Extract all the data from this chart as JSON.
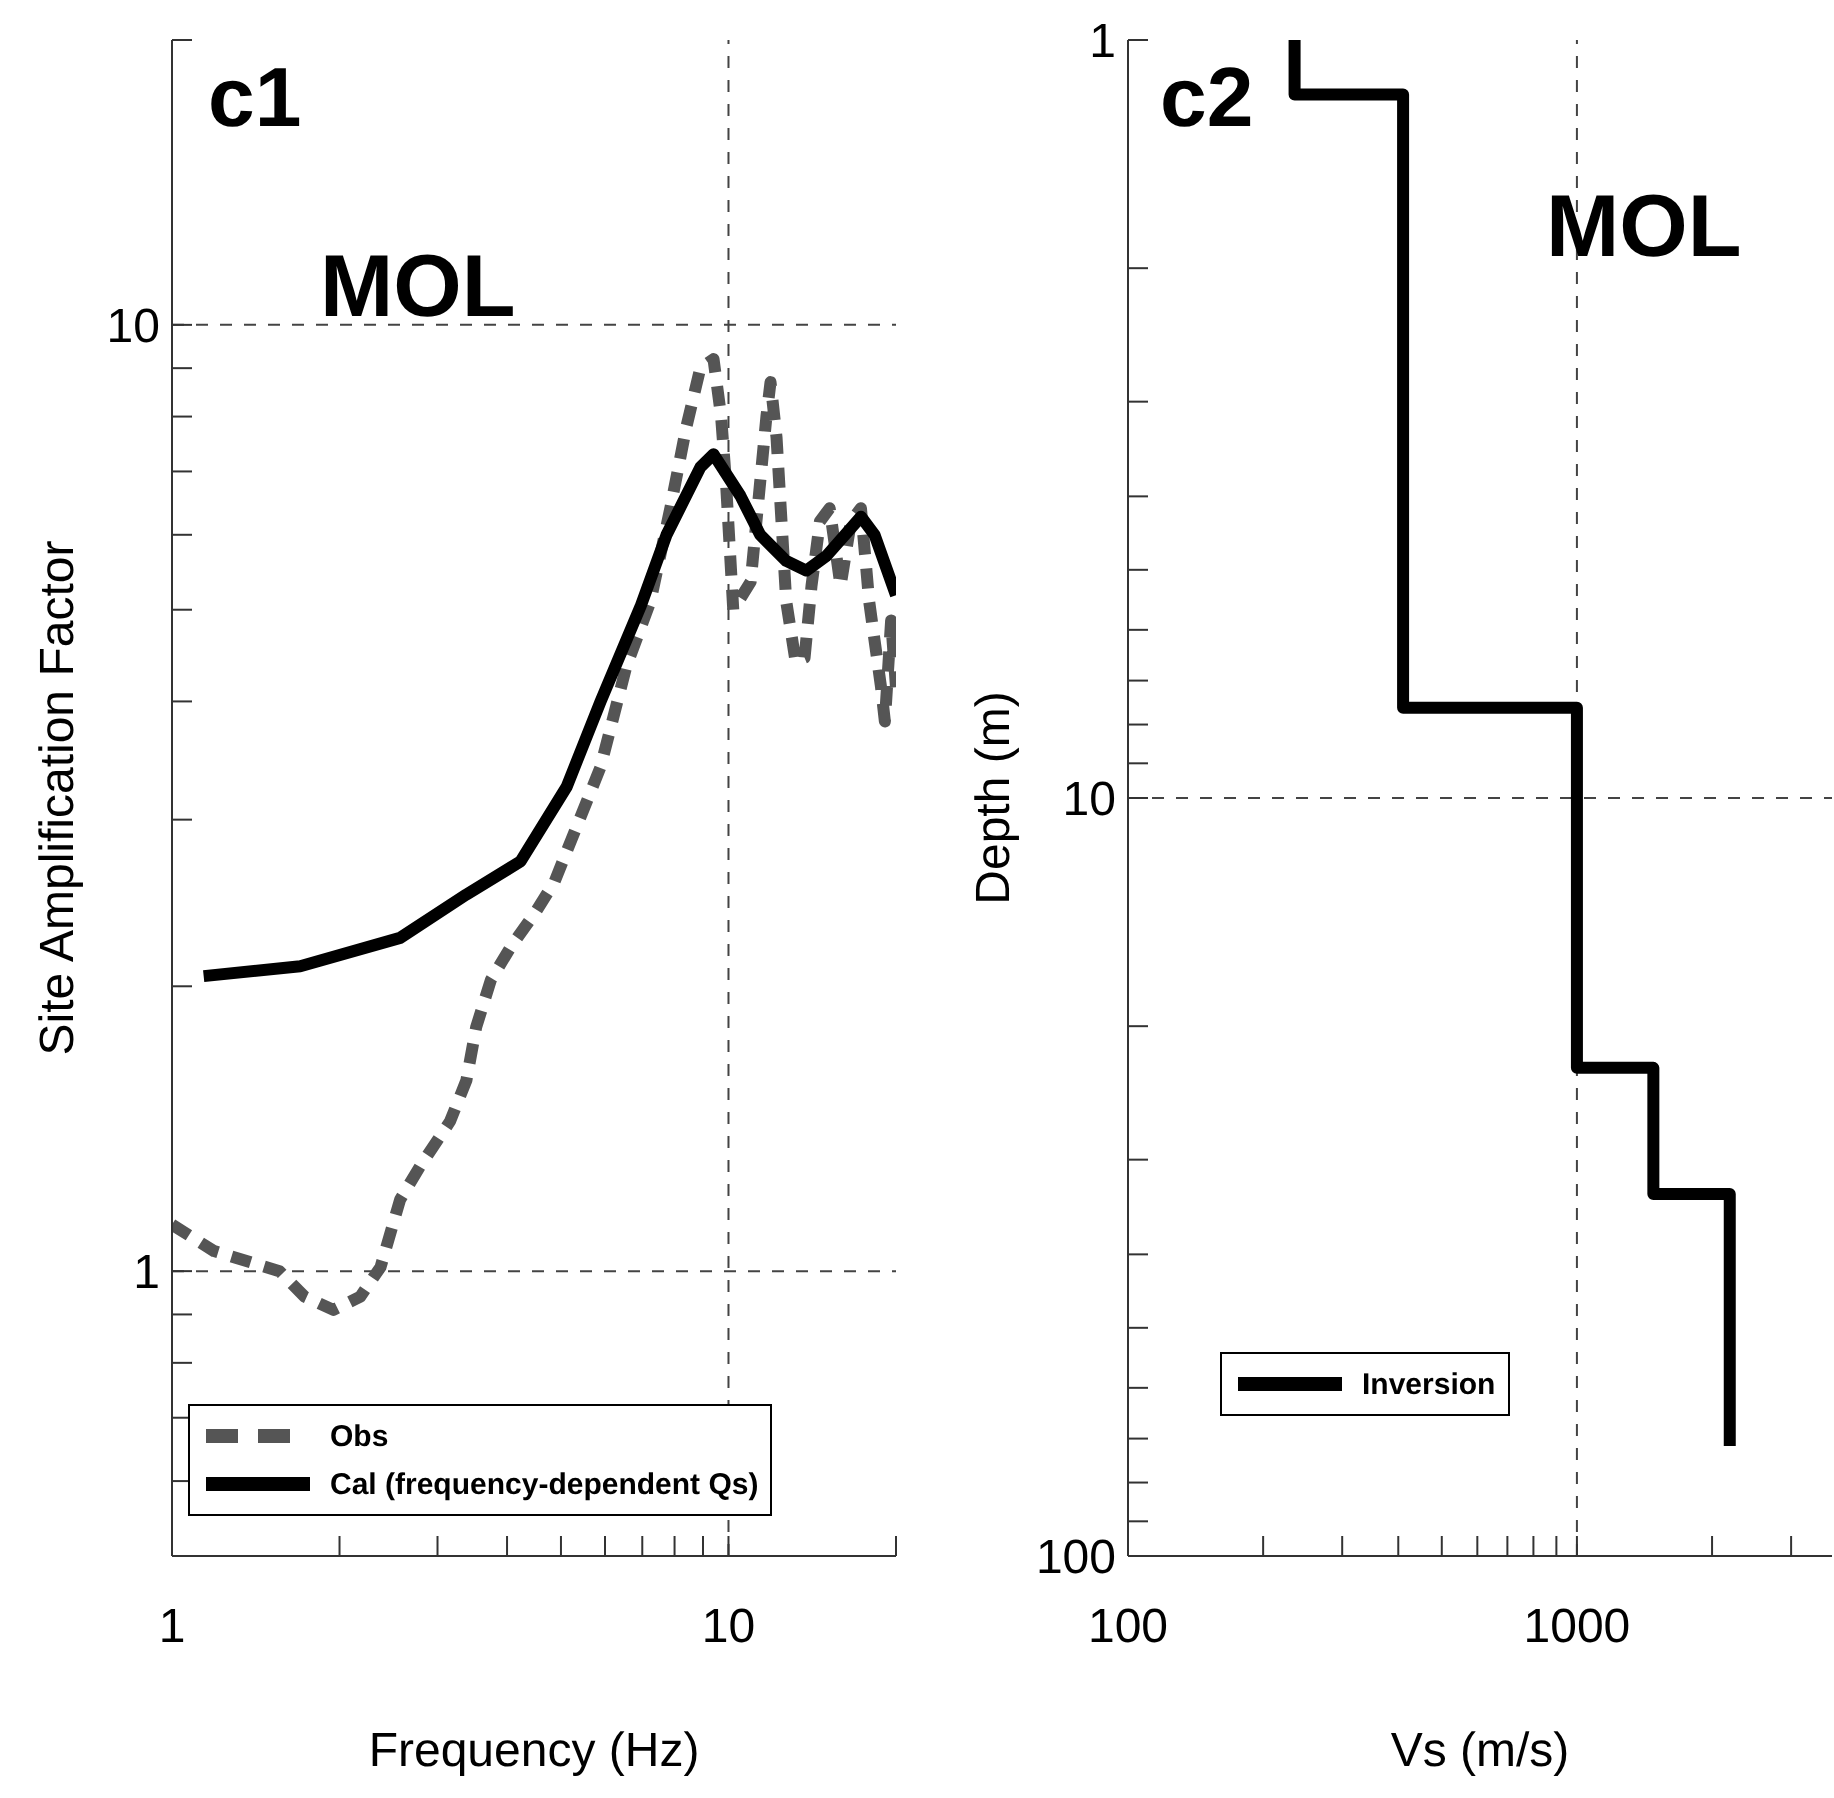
{
  "chart_data": [
    {
      "type": "line",
      "xlabel": "Frequency (Hz)",
      "ylabel": "Site Amplification Factor",
      "annotations": [
        "c1",
        "MOL"
      ],
      "log": "xy",
      "grid": true,
      "legend": "bottom left",
      "xlim": [
        1,
        20
      ],
      "xticks": [
        1,
        {
          "value": 2,
          "label": null
        },
        {
          "value": 3,
          "label": null
        },
        {
          "value": 4,
          "label": null
        },
        {
          "value": 5,
          "label": null
        },
        {
          "value": 6,
          "label": null
        },
        {
          "value": 7,
          "label": null
        },
        {
          "value": 8,
          "label": null
        },
        {
          "value": 9,
          "label": null
        },
        10,
        {
          "value": 20,
          "label": null
        }
      ],
      "ylim": [
        0.5,
        20
      ],
      "yticks": [
        {
          "value": 0.5,
          "label": null
        },
        {
          "value": 0.6,
          "label": null
        },
        {
          "value": 0.7,
          "label": null
        },
        {
          "value": 0.8,
          "label": null
        },
        {
          "value": 0.9,
          "label": null
        },
        1,
        {
          "value": 2,
          "label": null
        },
        {
          "value": 3,
          "label": null
        },
        {
          "value": 4,
          "label": null
        },
        {
          "value": 5,
          "label": null
        },
        {
          "value": 6,
          "label": null
        },
        {
          "value": 7,
          "label": null
        },
        {
          "value": 8,
          "label": null
        },
        {
          "value": 9,
          "label": null
        },
        10,
        {
          "value": 20,
          "label": null
        }
      ],
      "series": [
        {
          "name": "Obs",
          "color": "#555555",
          "line_style": "dashed",
          "x": [
            1.0,
            1.19,
            1.56,
            1.73,
            1.95,
            2.18,
            2.37,
            2.57,
            2.79,
            3.16,
            3.38,
            3.52,
            3.74,
            4.06,
            4.51,
            4.87,
            5.89,
            6.55,
            7.24,
            7.87,
            8.4,
            8.9,
            9.4,
            9.7,
            9.9,
            10.2,
            10.96,
            11.7,
            11.9,
            12.2,
            12.7,
            13.2,
            13.7,
            14.1,
            14.6,
            15.2,
            15.9,
            16.6,
            17.3,
            17.9,
            18.8,
            19.1,
            19.6,
            20
          ],
          "values": [
            1.12,
            1.05,
            1.0,
            0.94,
            0.91,
            0.94,
            1.01,
            1.19,
            1.29,
            1.44,
            1.59,
            1.81,
            2.03,
            2.2,
            2.4,
            2.58,
            3.41,
            4.35,
            5.1,
            6.42,
            7.8,
            9.0,
            9.2,
            8.0,
            6.8,
            5.0,
            5.35,
            8.0,
            8.7,
            7.6,
            5.1,
            4.41,
            4.45,
            5.3,
            6.2,
            6.4,
            5.3,
            6.2,
            6.4,
            5.1,
            4.14,
            3.81,
            4.87,
            4.14
          ]
        },
        {
          "name": "Cal (frequency-dependent Qs)",
          "color": "#000000",
          "line_style": "solid",
          "x": [
            1.14,
            1.7,
            2.57,
            3.38,
            4.23,
            5.12,
            5.89,
            6.95,
            7.74,
            8.9,
            9.4,
            10.5,
            11.4,
            12.7,
            13.8,
            15.0,
            17.3,
            18.3,
            20
          ],
          "values": [
            2.05,
            2.1,
            2.25,
            2.5,
            2.71,
            3.25,
            4.0,
            5.04,
            6.0,
            7.07,
            7.3,
            6.6,
            6.0,
            5.63,
            5.5,
            5.7,
            6.27,
            6.0,
            5.18
          ]
        }
      ]
    },
    {
      "type": "line",
      "xlabel": "Vs (m/s)",
      "ylabel": "Depth (m)",
      "annotations": [
        "c2",
        "MOL"
      ],
      "log": "xy",
      "grid": true,
      "legend": "bottom left",
      "xlim": [
        100,
        3700
      ],
      "xticks": [
        100,
        {
          "value": 200,
          "label": null
        },
        {
          "value": 300,
          "label": null
        },
        {
          "value": 400,
          "label": null
        },
        {
          "value": 500,
          "label": null
        },
        {
          "value": 600,
          "label": null
        },
        {
          "value": 700,
          "label": null
        },
        {
          "value": 800,
          "label": null
        },
        {
          "value": 900,
          "label": null
        },
        1000,
        {
          "value": 2000,
          "label": null
        },
        {
          "value": 3000,
          "label": null
        }
      ],
      "ylim": [
        100,
        1
      ],
      "yticks": [
        1,
        {
          "value": 2,
          "label": null
        },
        {
          "value": 3,
          "label": null
        },
        {
          "value": 4,
          "label": null
        },
        {
          "value": 5,
          "label": null
        },
        {
          "value": 6,
          "label": null
        },
        {
          "value": 7,
          "label": null
        },
        {
          "value": 8,
          "label": null
        },
        {
          "value": 9,
          "label": null
        },
        10,
        {
          "value": 20,
          "label": null
        },
        {
          "value": 30,
          "label": null
        },
        {
          "value": 40,
          "label": null
        },
        {
          "value": 50,
          "label": null
        },
        {
          "value": 60,
          "label": null
        },
        {
          "value": 70,
          "label": null
        },
        {
          "value": 80,
          "label": null
        },
        {
          "value": 90,
          "label": null
        },
        100
      ],
      "series": [
        {
          "name": "Inversion",
          "color": "#000000",
          "line_style": "solid",
          "x": [
            235,
            235,
            410,
            410,
            1000,
            1000,
            1480,
            1480,
            2190,
            2190
          ],
          "values": [
            1,
            1.18,
            1.18,
            7.6,
            7.6,
            22.7,
            22.7,
            33.3,
            33.3,
            71.6
          ]
        }
      ]
    }
  ]
}
